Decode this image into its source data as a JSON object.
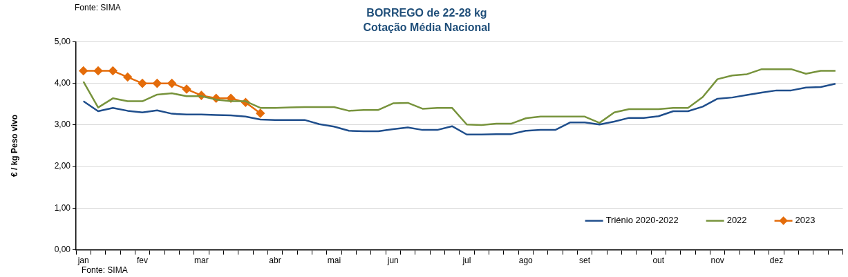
{
  "chart_data": {
    "type": "line",
    "title": "BORREGO de 22-28 kg",
    "subtitle": "Cotação Média Nacional",
    "ylabel": "€ / kg Peso vivo",
    "annotations": [
      "Fonte: SIMA",
      "Fonte: SIMA"
    ],
    "categories": [
      "jan",
      null,
      null,
      null,
      "fev",
      null,
      null,
      null,
      "mar",
      null,
      null,
      null,
      null,
      "abr",
      null,
      null,
      null,
      "mai",
      null,
      null,
      null,
      "jun",
      null,
      null,
      null,
      null,
      "jul",
      null,
      null,
      null,
      "ago",
      null,
      null,
      null,
      "set",
      null,
      null,
      null,
      null,
      "out",
      null,
      null,
      null,
      "nov",
      null,
      null,
      null,
      "dez",
      null,
      null,
      null,
      null
    ],
    "ylim": [
      0,
      5
    ],
    "yticks": [
      {
        "value": 0,
        "label": "0,00"
      },
      {
        "value": 1,
        "label": "1,00"
      },
      {
        "value": 2,
        "label": "2,00"
      },
      {
        "value": 3,
        "label": "3,00"
      },
      {
        "value": 4,
        "label": "4,00"
      },
      {
        "value": 5,
        "label": "5,00"
      }
    ],
    "grid": "y",
    "legend": "bottom right",
    "series": [
      {
        "name": "Triénio 2020-2022",
        "color": "#1f4e8c",
        "marker": "none",
        "values": [
          3.57,
          3.33,
          3.41,
          3.34,
          3.3,
          3.35,
          3.27,
          3.25,
          3.25,
          3.24,
          3.23,
          3.2,
          3.13,
          3.12,
          3.12,
          3.12,
          3.02,
          2.96,
          2.86,
          2.85,
          2.85,
          2.9,
          2.94,
          2.88,
          2.88,
          2.97,
          2.77,
          2.77,
          2.78,
          2.78,
          2.86,
          2.88,
          2.88,
          3.06,
          3.06,
          3.01,
          3.08,
          3.17,
          3.17,
          3.21,
          3.33,
          3.33,
          3.44,
          3.63,
          3.66,
          3.72,
          3.78,
          3.83,
          3.83,
          3.9,
          3.91,
          3.99
        ]
      },
      {
        "name": "2022",
        "color": "#77933c",
        "marker": "none",
        "values": [
          4.04,
          3.42,
          3.64,
          3.57,
          3.57,
          3.73,
          3.76,
          3.69,
          3.69,
          3.61,
          3.57,
          3.57,
          3.41,
          3.41,
          3.42,
          3.43,
          3.43,
          3.43,
          3.34,
          3.36,
          3.36,
          3.52,
          3.53,
          3.39,
          3.41,
          3.41,
          3.01,
          3.0,
          3.03,
          3.03,
          3.16,
          3.2,
          3.2,
          3.2,
          3.2,
          3.05,
          3.3,
          3.38,
          3.38,
          3.38,
          3.41,
          3.41,
          3.67,
          4.1,
          4.19,
          4.22,
          4.34,
          4.34,
          4.34,
          4.23,
          4.3,
          4.3
        ]
      },
      {
        "name": "2023",
        "color": "#e46c0a",
        "marker": "diamond",
        "values": [
          4.3,
          4.3,
          4.3,
          4.15,
          4.0,
          4.0,
          4.0,
          3.86,
          3.71,
          3.64,
          3.64,
          3.54,
          3.28,
          null,
          null,
          null,
          null,
          null,
          null,
          null,
          null,
          null,
          null,
          null,
          null,
          null,
          null,
          null,
          null,
          null,
          null,
          null,
          null,
          null,
          null,
          null,
          null,
          null,
          null,
          null,
          null,
          null,
          null,
          null,
          null,
          null,
          null,
          null,
          null,
          null,
          null,
          null
        ]
      }
    ]
  }
}
